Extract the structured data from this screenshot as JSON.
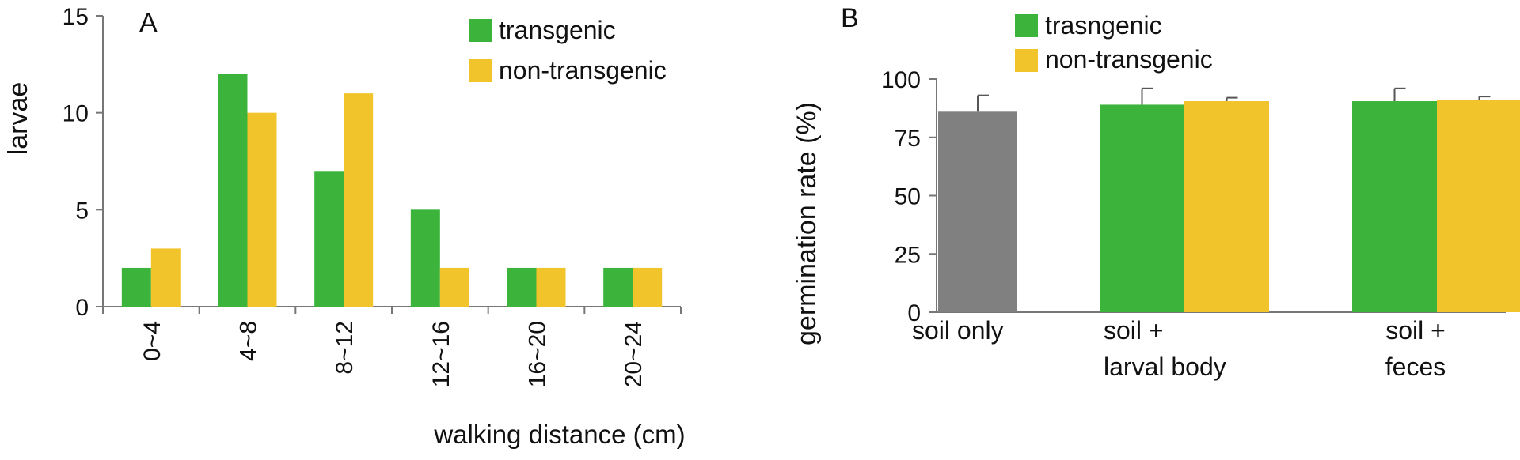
{
  "chart_data": [
    {
      "panel_label": "A",
      "type": "bar",
      "title": "",
      "xlabel": "walking distance (cm)",
      "ylabel": "larvae",
      "ylim": [
        0,
        15
      ],
      "yticks": [
        "0",
        "5",
        "10",
        "15"
      ],
      "ytick_values": [
        0,
        5,
        10,
        15
      ],
      "categories": [
        "0~4",
        "4~8",
        "8~12",
        "12~16",
        "16~20",
        "20~24"
      ],
      "grid": false,
      "legend_position": "top-right",
      "series": [
        {
          "name": "transgenic",
          "color": "#3cb43c",
          "values": [
            2,
            12,
            7,
            5,
            2,
            2
          ]
        },
        {
          "name": "non-transgenic",
          "color": "#f2c42b",
          "values": [
            3,
            10,
            11,
            2,
            2,
            2
          ]
        }
      ]
    },
    {
      "panel_label": "B",
      "type": "bar",
      "title": "",
      "xlabel": "",
      "ylabel": "germination rate (%)",
      "ylim": [
        0,
        100
      ],
      "yticks": [
        "0",
        "25",
        "50",
        "75",
        "100"
      ],
      "ytick_values": [
        0,
        25,
        50,
        75,
        100
      ],
      "grid": false,
      "legend_position": "top-left",
      "legend": [
        {
          "name": "trasngenic",
          "color": "#3cb43c"
        },
        {
          "name": "non-transgenic",
          "color": "#f2c42b"
        }
      ],
      "groups": [
        {
          "label_lines": [
            "soil only"
          ],
          "bars": [
            {
              "value": 86,
              "error": 7,
              "color": "#808080"
            }
          ]
        },
        {
          "label_lines": [
            "soil +",
            "larval body"
          ],
          "bars": [
            {
              "series": "trasngenic",
              "value": 89,
              "error": 7,
              "color": "#3cb43c"
            },
            {
              "series": "non-transgenic",
              "value": 90.5,
              "error": 1.5,
              "color": "#f2c42b"
            }
          ]
        },
        {
          "label_lines": [
            "soil +",
            "feces"
          ],
          "bars": [
            {
              "series": "trasngenic",
              "value": 90.5,
              "error": 5.5,
              "color": "#3cb43c"
            },
            {
              "series": "non-transgenic",
              "value": 91,
              "error": 1.5,
              "color": "#f2c42b"
            }
          ]
        }
      ]
    }
  ]
}
